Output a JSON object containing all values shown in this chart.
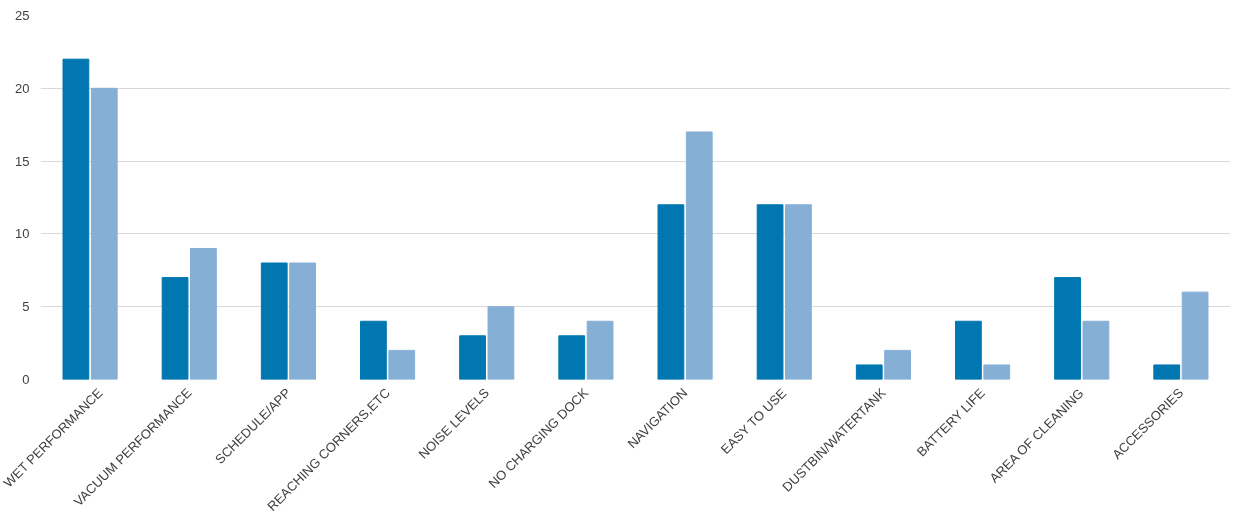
{
  "chart_data": {
    "type": "bar",
    "categories": [
      "WET PERFORMANCE",
      "VACUUM PERFORMANCE",
      "SCHEDULE/APP",
      "REACHING CORNERS,ETC",
      "NOISE LEVELS",
      "NO CHARGING DOCK",
      "NAVIGATION",
      "EASY TO USE",
      "DUSTBIN/WATERTANK",
      "BATTERY LIFE",
      "AREA OF CLEANING",
      "ACCESSORIES"
    ],
    "series": [
      {
        "color": "#0077b0",
        "values": [
          22,
          7,
          8,
          4,
          3,
          3,
          12,
          12,
          1,
          4,
          7,
          1
        ]
      },
      {
        "color": "#86afd6",
        "values": [
          20,
          9,
          8,
          2,
          5,
          4,
          17,
          12,
          2,
          1,
          4,
          6
        ]
      }
    ],
    "ylim": [
      0,
      25
    ],
    "yticks": [
      0,
      5,
      10,
      15,
      20,
      25
    ],
    "grid": "y"
  }
}
